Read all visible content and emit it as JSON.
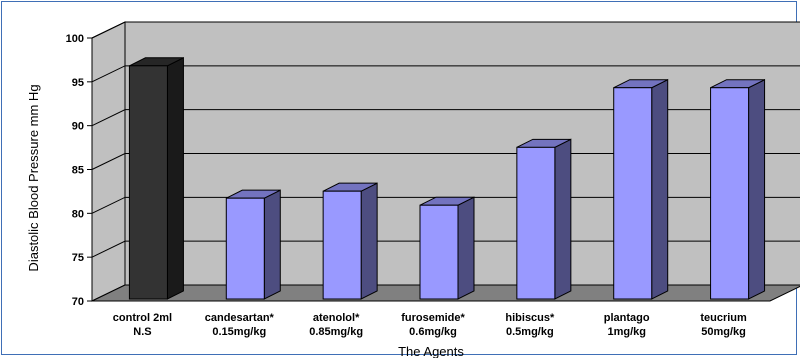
{
  "chart_data": {
    "type": "bar",
    "title": "",
    "xlabel": "The Agents",
    "ylabel": "Diastolic Blood Pressure mm Hg",
    "ylim": [
      70,
      100
    ],
    "yticks": [
      70,
      75,
      80,
      85,
      90,
      95,
      100
    ],
    "grid": true,
    "legend": "none",
    "categories": [
      [
        "control 2ml",
        "N.S"
      ],
      [
        "candesartan*",
        "0.15mg/kg"
      ],
      [
        "atenolol*",
        "0.85mg/kg"
      ],
      [
        "furosemide*",
        "0.6mg/kg"
      ],
      [
        "hibiscus*",
        "0.5mg/kg"
      ],
      [
        "plantago",
        "1mg/kg"
      ],
      [
        "teucrium",
        "50mg/kg"
      ]
    ],
    "values": [
      96.6,
      81.5,
      82.3,
      80.7,
      87.3,
      94.1,
      94.1
    ],
    "colors": [
      "#333333",
      "#9999ff",
      "#9999ff",
      "#9999ff",
      "#9999ff",
      "#9999ff",
      "#9999ff"
    ],
    "wall_color": "#c0c0c0",
    "floor_color": "#808080"
  }
}
